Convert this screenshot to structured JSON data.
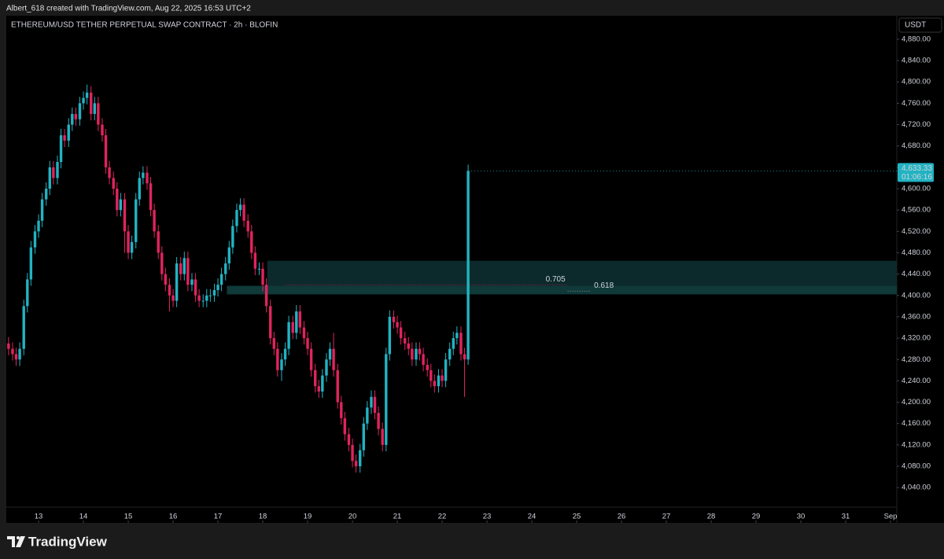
{
  "header": "Albert_618 created with TradingView.com, Aug 22, 2025 16:53 UTC+2",
  "footer": "TradingView",
  "chart_data": {
    "type": "candlestick",
    "title": "ETHEREUM/USD TETHER PERPETUAL SWAP CONTRACT · 2h · BLOFIN",
    "currency": "USDT",
    "up_color": "#22b3c2",
    "down_color": "#e0245e",
    "xlim": [
      12.28,
      32.14
    ],
    "ylim": [
      3974,
      4924
    ],
    "xticks": [
      13,
      14,
      15,
      16,
      17,
      18,
      19,
      20,
      21,
      22,
      23,
      24,
      25,
      26,
      27,
      28,
      29,
      30,
      31,
      {
        "value": 32,
        "label": "Sep"
      }
    ],
    "yticks": [
      {
        "value": 4040,
        "label": "4,040.00"
      },
      {
        "value": 4080,
        "label": "4,080.00"
      },
      {
        "value": 4120,
        "label": "4,120.00"
      },
      {
        "value": 4160,
        "label": "4,160.00"
      },
      {
        "value": 4200,
        "label": "4,200.00"
      },
      {
        "value": 4240,
        "label": "4,240.00"
      },
      {
        "value": 4280,
        "label": "4,280.00"
      },
      {
        "value": 4320,
        "label": "4,320.00"
      },
      {
        "value": 4360,
        "label": "4,360.00"
      },
      {
        "value": 4400,
        "label": "4,400.00"
      },
      {
        "value": 4440,
        "label": "4,440.00"
      },
      {
        "value": 4480,
        "label": "4,480.00"
      },
      {
        "value": 4520,
        "label": "4,520.00"
      },
      {
        "value": 4560,
        "label": "4,560.00"
      },
      {
        "value": 4600,
        "label": "4,600.00"
      },
      {
        "value": 4640,
        "label": "4,640.00"
      },
      {
        "value": 4680,
        "label": "4,680.00"
      },
      {
        "value": 4720,
        "label": "4,720.00"
      },
      {
        "value": 4760,
        "label": "4,760.00"
      },
      {
        "value": 4800,
        "label": "4,800.00"
      },
      {
        "value": 4840,
        "label": "4,840.00"
      },
      {
        "value": 4880,
        "label": "4,880.00"
      }
    ],
    "x": [
      12.33,
      12.42,
      12.5,
      12.58,
      12.67,
      12.75,
      12.83,
      12.92,
      13,
      13.08,
      13.17,
      13.25,
      13.33,
      13.42,
      13.5,
      13.58,
      13.67,
      13.75,
      13.83,
      13.92,
      14,
      14.08,
      14.17,
      14.25,
      14.33,
      14.42,
      14.5,
      14.58,
      14.67,
      14.75,
      14.83,
      14.92,
      15,
      15.08,
      15.17,
      15.25,
      15.33,
      15.42,
      15.5,
      15.58,
      15.67,
      15.75,
      15.83,
      15.92,
      16,
      16.08,
      16.17,
      16.25,
      16.33,
      16.42,
      16.5,
      16.58,
      16.67,
      16.75,
      16.83,
      16.92,
      17,
      17.08,
      17.17,
      17.25,
      17.33,
      17.42,
      17.5,
      17.58,
      17.67,
      17.75,
      17.83,
      17.92,
      18,
      18.08,
      18.17,
      18.25,
      18.33,
      18.42,
      18.5,
      18.58,
      18.67,
      18.75,
      18.83,
      18.92,
      19,
      19.08,
      19.17,
      19.25,
      19.33,
      19.42,
      19.5,
      19.58,
      19.67,
      19.75,
      19.83,
      19.92,
      20,
      20.08,
      20.17,
      20.25,
      20.33,
      20.42,
      20.5,
      20.58,
      20.67,
      20.75,
      20.83,
      20.92,
      21,
      21.08,
      21.17,
      21.25,
      21.33,
      21.42,
      21.5,
      21.58,
      21.67,
      21.75,
      21.83,
      21.92,
      22,
      22.08,
      22.17,
      22.25,
      22.33,
      22.42,
      22.5,
      22.58
    ],
    "open": [
      4310,
      4300,
      4290,
      4280,
      4300,
      4380,
      4430,
      4490,
      4520,
      4540,
      4580,
      4600,
      4640,
      4620,
      4650,
      4700,
      4690,
      4720,
      4740,
      4730,
      4760,
      4770,
      4780,
      4740,
      4760,
      4720,
      4700,
      4640,
      4620,
      4600,
      4560,
      4580,
      4520,
      4480,
      4500,
      4580,
      4620,
      4630,
      4610,
      4560,
      4520,
      4480,
      4440,
      4420,
      4400,
      4390,
      4460,
      4440,
      4470,
      4420,
      4430,
      4400,
      4390,
      4390,
      4400,
      4400,
      4410,
      4420,
      4440,
      4460,
      4490,
      4530,
      4560,
      4570,
      4540,
      4520,
      4480,
      4450,
      4450,
      4420,
      4380,
      4320,
      4300,
      4260,
      4280,
      4300,
      4350,
      4330,
      4370,
      4340,
      4320,
      4300,
      4260,
      4230,
      4220,
      4250,
      4280,
      4300,
      4260,
      4200,
      4170,
      4140,
      4120,
      4090,
      4080,
      4110,
      4160,
      4190,
      4210,
      4180,
      4150,
      4120,
      4290,
      4360,
      4350,
      4340,
      4320,
      4310,
      4300,
      4280,
      4300,
      4290,
      4270,
      4260,
      4240,
      4230,
      4250,
      4240,
      4280,
      4300,
      4320,
      4330,
      4290,
      4280
    ],
    "high": [
      4322,
      4312,
      4302,
      4312,
      4392,
      4442,
      4502,
      4532,
      4552,
      4592,
      4612,
      4652,
      4652,
      4662,
      4712,
      4712,
      4732,
      4752,
      4752,
      4772,
      4782,
      4795,
      4792,
      4772,
      4772,
      4732,
      4712,
      4652,
      4632,
      4612,
      4592,
      4592,
      4532,
      4512,
      4592,
      4632,
      4642,
      4642,
      4622,
      4572,
      4532,
      4492,
      4452,
      4432,
      4412,
      4472,
      4472,
      4482,
      4482,
      4442,
      4442,
      4412,
      4402,
      4412,
      4412,
      4422,
      4432,
      4452,
      4472,
      4502,
      4542,
      4572,
      4582,
      4582,
      4552,
      4532,
      4492,
      4462,
      4462,
      4432,
      4392,
      4332,
      4312,
      4292,
      4312,
      4362,
      4362,
      4382,
      4382,
      4352,
      4332,
      4312,
      4272,
      4242,
      4262,
      4292,
      4312,
      4330,
      4272,
      4212,
      4182,
      4152,
      4132,
      4102,
      4122,
      4172,
      4202,
      4222,
      4222,
      4192,
      4162,
      4302,
      4372,
      4372,
      4362,
      4352,
      4332,
      4322,
      4312,
      4312,
      4312,
      4302,
      4282,
      4272,
      4252,
      4262,
      4262,
      4292,
      4312,
      4332,
      4342,
      4342,
      4302,
      4645
    ],
    "low": [
      4288,
      4278,
      4268,
      4268,
      4288,
      4368,
      4418,
      4478,
      4508,
      4528,
      4568,
      4588,
      4608,
      4608,
      4638,
      4678,
      4678,
      4708,
      4718,
      4718,
      4748,
      4758,
      4728,
      4728,
      4708,
      4688,
      4628,
      4608,
      4588,
      4548,
      4548,
      4480,
      4468,
      4468,
      4488,
      4568,
      4608,
      4598,
      4548,
      4508,
      4468,
      4428,
      4408,
      4370,
      4378,
      4378,
      4428,
      4428,
      4408,
      4408,
      4388,
      4378,
      4378,
      4378,
      4388,
      4388,
      4398,
      4408,
      4428,
      4448,
      4478,
      4518,
      4548,
      4528,
      4508,
      4468,
      4438,
      4438,
      4408,
      4368,
      4308,
      4288,
      4248,
      4240,
      4268,
      4288,
      4318,
      4318,
      4328,
      4308,
      4288,
      4248,
      4218,
      4208,
      4208,
      4238,
      4268,
      4248,
      4188,
      4158,
      4128,
      4108,
      4078,
      4068,
      4068,
      4098,
      4148,
      4178,
      4168,
      4138,
      4108,
      4108,
      4278,
      4338,
      4328,
      4308,
      4298,
      4288,
      4268,
      4268,
      4278,
      4258,
      4248,
      4228,
      4218,
      4218,
      4228,
      4228,
      4268,
      4288,
      4308,
      4278,
      4210,
      4270
    ],
    "close": [
      4300,
      4290,
      4280,
      4300,
      4380,
      4430,
      4490,
      4520,
      4540,
      4580,
      4600,
      4640,
      4620,
      4650,
      4700,
      4690,
      4720,
      4740,
      4730,
      4760,
      4770,
      4780,
      4740,
      4760,
      4720,
      4700,
      4640,
      4620,
      4600,
      4560,
      4580,
      4520,
      4480,
      4500,
      4580,
      4620,
      4630,
      4610,
      4560,
      4520,
      4480,
      4440,
      4420,
      4400,
      4390,
      4460,
      4440,
      4470,
      4420,
      4430,
      4400,
      4390,
      4390,
      4400,
      4400,
      4410,
      4420,
      4440,
      4460,
      4490,
      4530,
      4560,
      4570,
      4540,
      4520,
      4480,
      4450,
      4450,
      4420,
      4380,
      4320,
      4300,
      4260,
      4280,
      4300,
      4350,
      4330,
      4370,
      4340,
      4320,
      4300,
      4260,
      4230,
      4220,
      4250,
      4280,
      4300,
      4260,
      4200,
      4170,
      4140,
      4120,
      4090,
      4080,
      4110,
      4160,
      4190,
      4210,
      4180,
      4150,
      4120,
      4290,
      4360,
      4350,
      4340,
      4320,
      4310,
      4300,
      4280,
      4300,
      4290,
      4270,
      4260,
      4240,
      4230,
      4250,
      4240,
      4280,
      4300,
      4320,
      4330,
      4290,
      4280,
      4633.33
    ],
    "last_price": {
      "value": 4633.33,
      "label": "4,633.33"
    },
    "countdown": "01:06:16",
    "zones": [
      {
        "x0": 18.1,
        "y0": 4418,
        "y1": 4465,
        "color": "#0c2a2b"
      },
      {
        "x0": 17.2,
        "y0": 4402,
        "y1": 4418,
        "color": "#103a3a"
      }
    ],
    "annotations": [
      {
        "label": "0.705",
        "y": 4420,
        "x0": 18.5,
        "x1": 24.8,
        "color": "#c2185b"
      },
      {
        "label": "0.618",
        "y": 4408,
        "x0": 24.8,
        "x1": 25.3,
        "color": "#9e9e9e"
      }
    ]
  }
}
